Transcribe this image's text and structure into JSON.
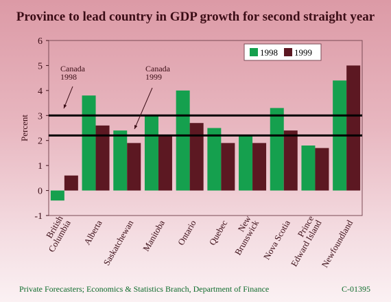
{
  "title": "Province to lead country in GDP growth for second straight year",
  "footer": {
    "source": "Private Forecasters; Economics & Statistics Branch, Department of Finance",
    "code": "C-01395"
  },
  "colors": {
    "s1998": "#15a04e",
    "s1999": "#5c1822",
    "text": "#3b0d16"
  },
  "chart_data": {
    "type": "bar",
    "ylabel": "Percent",
    "ylim": [
      -1,
      6
    ],
    "yticks": [
      -1,
      0,
      1,
      2,
      3,
      4,
      5,
      6
    ],
    "grid": false,
    "legend_position": "top-right",
    "categories": [
      [
        "British",
        "Columbia"
      ],
      [
        "Alberta"
      ],
      [
        "Saskatchewan"
      ],
      [
        "Manitoba"
      ],
      [
        "Ontario"
      ],
      [
        "Quebec"
      ],
      [
        "New",
        "Brunswick"
      ],
      [
        "Nova Scotia"
      ],
      [
        "Prince",
        "Edward Island"
      ],
      [
        "Newfoundland"
      ]
    ],
    "series": [
      {
        "name": "1998",
        "values": [
          -0.4,
          3.8,
          2.4,
          3.0,
          4.0,
          2.5,
          2.2,
          3.3,
          1.8,
          4.4
        ]
      },
      {
        "name": "1999",
        "values": [
          0.6,
          2.6,
          1.9,
          2.2,
          2.7,
          1.9,
          1.9,
          2.4,
          1.7,
          5.0
        ]
      }
    ],
    "reference_lines": [
      {
        "label": [
          "Canada",
          "1998"
        ],
        "value": 3.0
      },
      {
        "label": [
          "Canada",
          "1999"
        ],
        "value": 2.2
      }
    ]
  }
}
